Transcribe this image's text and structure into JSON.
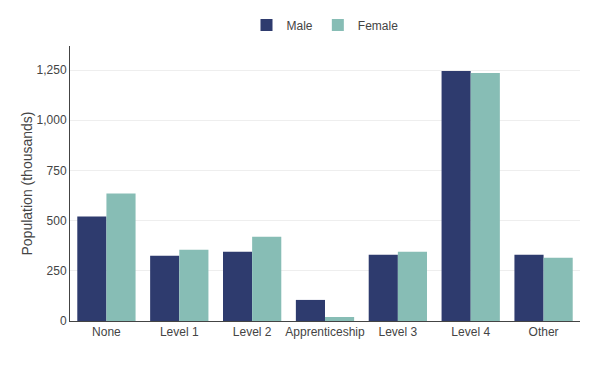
{
  "chart_data": {
    "type": "bar",
    "categories": [
      "None",
      "Level 1",
      "Level 2",
      "Apprenticeship",
      "Level 3",
      "Level 4",
      "Other"
    ],
    "series": [
      {
        "name": "Male",
        "color": "#2E3B6E",
        "values": [
          520,
          325,
          345,
          105,
          330,
          1245,
          330
        ]
      },
      {
        "name": "Female",
        "color": "#87BDB5",
        "values": [
          635,
          355,
          420,
          20,
          345,
          1235,
          315
        ]
      }
    ],
    "ylabel": "Population (thousands)",
    "ylim": [
      0,
      1370
    ],
    "yticks": [
      0,
      250,
      500,
      750,
      {
        "value": 1000,
        "label": "1,000"
      },
      {
        "value": 1250,
        "label": "1,250"
      }
    ],
    "grid": true,
    "legend": "top"
  }
}
